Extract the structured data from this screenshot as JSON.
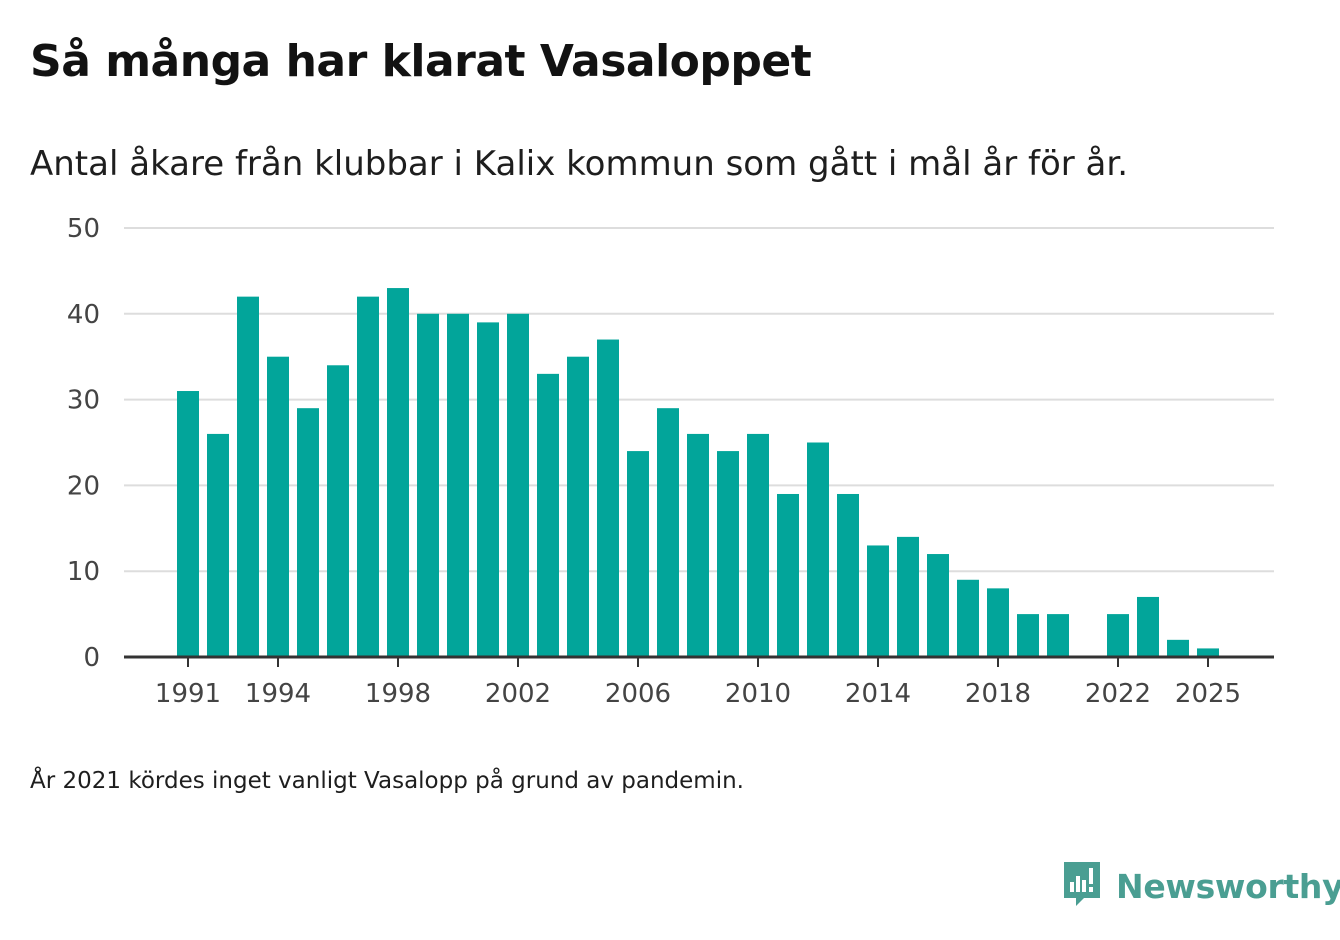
{
  "header": {
    "title": "Så många har klarat Vasaloppet",
    "subtitle": "Antal åkare från klubbar i Kalix kommun som gått i mål år för år."
  },
  "footer": {
    "note": "År 2021 kördes inget vanligt Vasalopp på grund av pandemin.",
    "brand_name": "Newsworthy"
  },
  "colors": {
    "bar": "#02a59a",
    "grid": "#dddddd",
    "axis": "#333333",
    "brand": "#4a9e92"
  },
  "icons": {
    "brand": "newsworthy-bar-chart-speech-bubble-icon"
  },
  "chart_data": {
    "type": "bar",
    "title": "Så många har klarat Vasaloppet",
    "subtitle": "Antal åkare från klubbar i Kalix kommun som gått i mål år för år.",
    "xlabel": "",
    "ylabel": "",
    "ylim": [
      0,
      50
    ],
    "yticks": [
      0,
      10,
      20,
      30,
      40,
      50
    ],
    "xticks": [
      1991,
      1994,
      1998,
      2002,
      2006,
      2010,
      2014,
      2018,
      2022,
      2025
    ],
    "grid": true,
    "categories": [
      1991,
      1992,
      1993,
      1994,
      1995,
      1996,
      1997,
      1998,
      1999,
      2000,
      2001,
      2002,
      2003,
      2004,
      2005,
      2006,
      2007,
      2008,
      2009,
      2010,
      2011,
      2012,
      2013,
      2014,
      2015,
      2016,
      2017,
      2018,
      2019,
      2020,
      2021,
      2022,
      2023,
      2024,
      2025
    ],
    "values": [
      31,
      26,
      42,
      35,
      29,
      34,
      42,
      43,
      40,
      40,
      39,
      40,
      33,
      35,
      37,
      24,
      29,
      26,
      24,
      26,
      19,
      25,
      19,
      13,
      14,
      12,
      9,
      8,
      5,
      5,
      null,
      5,
      7,
      2,
      1
    ]
  }
}
